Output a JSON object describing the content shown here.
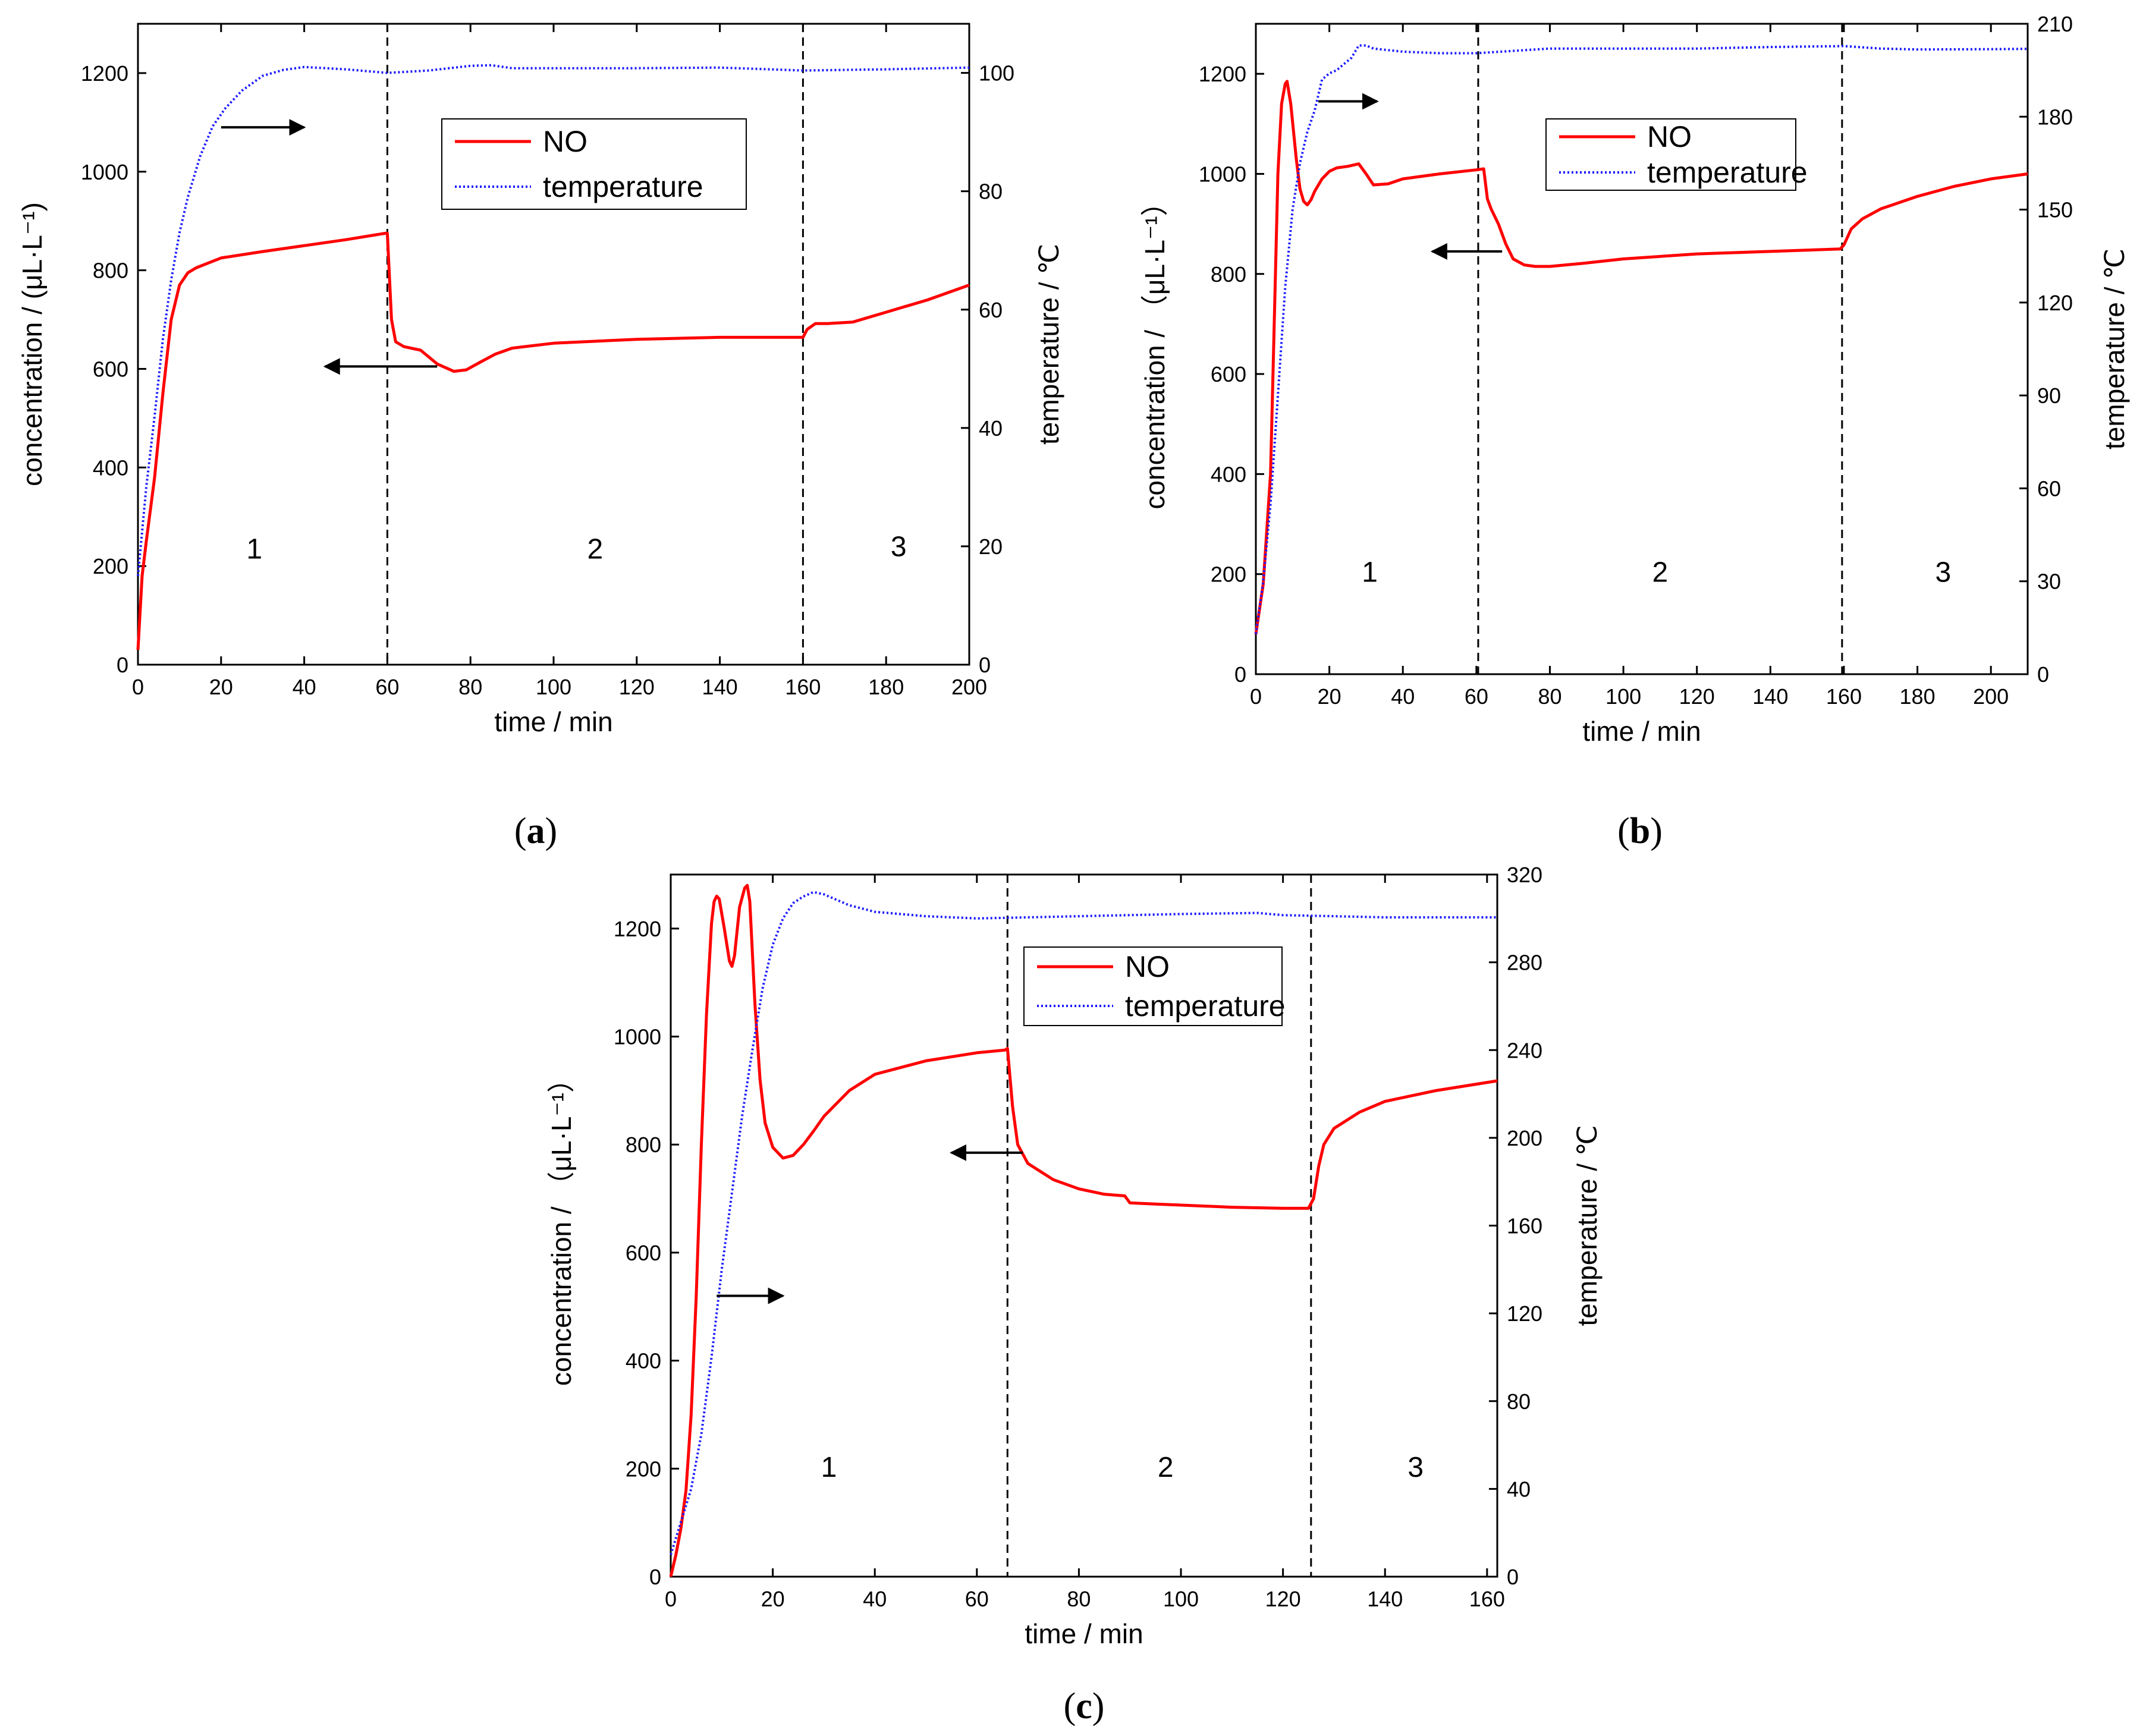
{
  "colors": {
    "no": "#ff0000",
    "temperature": "#1a1aff",
    "axis": "#000000"
  },
  "chart_data": [
    {
      "type": "line",
      "panel": "a",
      "caption": {
        "open": "(",
        "letter": "a",
        "close": ")"
      },
      "xlabel": "time / min",
      "ylabel": "concentration / (μL·L⁻¹)",
      "y2label": "temperature / ℃",
      "xlim": [
        0,
        200
      ],
      "ylim": [
        0,
        1300
      ],
      "y2lim": [
        0,
        108.3
      ],
      "xticks": [
        0,
        20,
        40,
        60,
        80,
        100,
        120,
        140,
        160,
        180,
        200
      ],
      "yticks": [
        0,
        200,
        400,
        600,
        800,
        1000,
        1200
      ],
      "y2ticks": [
        0,
        20,
        40,
        60,
        80,
        100
      ],
      "dividers": [
        60,
        160
      ],
      "regions": [
        {
          "label": "1",
          "x": 28,
          "y": 215
        },
        {
          "label": "2",
          "x": 110,
          "y": 215
        },
        {
          "label": "3",
          "x": 183,
          "y": 220
        }
      ],
      "legend": {
        "position": "top-center",
        "entries": [
          "NO",
          "temperature"
        ]
      },
      "arrows": [
        {
          "axis": "right",
          "x_from": 20,
          "x_to": 40,
          "y": 1090
        },
        {
          "axis": "left",
          "x_from": 72,
          "x_to": 45,
          "y": 605
        }
      ],
      "series": [
        {
          "name": "NO",
          "axis": "left",
          "x": [
            0,
            1,
            2,
            4,
            6,
            8,
            10,
            12,
            14,
            17,
            20,
            30,
            40,
            50,
            59.5,
            60,
            61,
            62,
            64,
            68,
            72,
            76,
            79,
            82,
            86,
            90,
            100,
            120,
            140,
            160,
            161,
            163,
            166,
            172,
            180,
            190,
            200
          ],
          "y": [
            30,
            180,
            250,
            380,
            550,
            700,
            770,
            795,
            805,
            815,
            825,
            838,
            850,
            862,
            875,
            875,
            700,
            655,
            645,
            638,
            610,
            595,
            598,
            612,
            630,
            642,
            652,
            660,
            664,
            664,
            680,
            692,
            692,
            695,
            715,
            740,
            770
          ]
        },
        {
          "name": "temperature",
          "axis": "right",
          "x": [
            0,
            2,
            4,
            6,
            8,
            10,
            12,
            15,
            18,
            21,
            25,
            30,
            35,
            40,
            50,
            60,
            70,
            80,
            85,
            90,
            100,
            120,
            140,
            160,
            180,
            200
          ],
          "y": [
            15,
            30,
            42,
            55,
            65,
            73,
            79,
            86,
            91,
            94,
            97,
            99.5,
            100.5,
            101,
            100.6,
            100,
            100.4,
            101.2,
            101.3,
            100.8,
            100.8,
            100.8,
            100.9,
            100.4,
            100.6,
            100.9
          ]
        }
      ]
    },
    {
      "type": "line",
      "panel": "b",
      "caption": {
        "open": "(",
        "letter": "b",
        "close": ")"
      },
      "xlabel": "time / min",
      "ylabel": "concentration / （μL·L⁻¹）",
      "y2label": "temperature / ℃",
      "xlim": [
        0,
        210
      ],
      "ylim": [
        0,
        1300
      ],
      "y2lim": [
        0,
        210
      ],
      "xticks": [
        0,
        20,
        40,
        60,
        80,
        100,
        120,
        140,
        160,
        180,
        200
      ],
      "yticks": [
        0,
        200,
        400,
        600,
        800,
        1000,
        1200
      ],
      "y2ticks": [
        0,
        30,
        60,
        90,
        120,
        150,
        180,
        210
      ],
      "dividers": [
        60.5,
        159.5
      ],
      "regions": [
        {
          "label": "1",
          "x": 31,
          "y": 185
        },
        {
          "label": "2",
          "x": 110,
          "y": 185
        },
        {
          "label": "3",
          "x": 187,
          "y": 185
        }
      ],
      "legend": {
        "position": "top-center",
        "entries": [
          "NO",
          "temperature"
        ]
      },
      "arrows": [
        {
          "axis": "right",
          "x_from": 17,
          "x_to": 33,
          "y": 1145
        },
        {
          "axis": "left",
          "x_from": 67,
          "x_to": 48,
          "y": 845
        }
      ],
      "series": [
        {
          "name": "NO",
          "axis": "left",
          "x": [
            0,
            2,
            4,
            5,
            6,
            7,
            8,
            8.5,
            9.5,
            11,
            12,
            13,
            14,
            15,
            16,
            18,
            20,
            22,
            25,
            28,
            30,
            32,
            36,
            40,
            50,
            60,
            62,
            63,
            64,
            66,
            68,
            70,
            73,
            76,
            80,
            90,
            100,
            120,
            140,
            159,
            160,
            162,
            165,
            170,
            180,
            190,
            200,
            210
          ],
          "y": [
            80,
            180,
            400,
            700,
            1000,
            1140,
            1180,
            1185,
            1140,
            1030,
            970,
            945,
            938,
            948,
            965,
            990,
            1005,
            1012,
            1015,
            1020,
            1000,
            978,
            980,
            990,
            1000,
            1008,
            1010,
            950,
            930,
            900,
            860,
            830,
            818,
            815,
            815,
            822,
            830,
            840,
            845,
            850,
            858,
            890,
            910,
            930,
            955,
            975,
            990,
            1000
          ]
        },
        {
          "name": "temperature",
          "axis": "right",
          "x": [
            0,
            2,
            4,
            6,
            8,
            10,
            12,
            14,
            16,
            18,
            20,
            22,
            24,
            26,
            28,
            30,
            32,
            40,
            50,
            60,
            80,
            100,
            120,
            140,
            160,
            170,
            180,
            200,
            210
          ],
          "y": [
            13,
            30,
            55,
            90,
            125,
            150,
            165,
            175,
            182,
            192,
            194,
            195,
            197,
            199,
            203,
            203,
            202,
            201,
            200.5,
            200.5,
            202,
            202,
            202,
            202.5,
            202.8,
            202,
            201.7,
            201.8,
            201.9
          ]
        }
      ]
    },
    {
      "type": "line",
      "panel": "c",
      "caption": {
        "open": "(",
        "letter": "c",
        "close": ")"
      },
      "xlabel": "time / min",
      "ylabel": "concentration / （μL·L⁻¹）",
      "y2label": "temperature / ℃",
      "xlim": [
        0,
        162
      ],
      "ylim": [
        0,
        1300
      ],
      "y2lim": [
        0,
        320
      ],
      "xticks": [
        0,
        20,
        40,
        60,
        80,
        100,
        120,
        140,
        160
      ],
      "yticks": [
        0,
        200,
        400,
        600,
        800,
        1000,
        1200
      ],
      "y2ticks": [
        0,
        40,
        80,
        120,
        160,
        200,
        240,
        280,
        320
      ],
      "dividers": [
        66,
        125.5
      ],
      "regions": [
        {
          "label": "1",
          "x": 31,
          "y": 185
        },
        {
          "label": "2",
          "x": 97,
          "y": 185
        },
        {
          "label": "3",
          "x": 146,
          "y": 185
        }
      ],
      "legend": {
        "position": "top-center",
        "entries": [
          "NO",
          "temperature"
        ]
      },
      "arrows": [
        {
          "axis": "right",
          "x_from": 9,
          "x_to": 22,
          "y": 520
        },
        {
          "axis": "left",
          "x_from": 69,
          "x_to": 55,
          "y": 785
        }
      ],
      "series": [
        {
          "name": "NO",
          "axis": "left",
          "x": [
            0,
            1,
            2,
            3,
            4,
            5,
            6,
            7,
            8,
            8.5,
            9,
            9.5,
            10.5,
            11.5,
            12,
            12.5,
            13.5,
            14.5,
            15,
            15.5,
            16.5,
            17.5,
            18.5,
            20,
            22,
            24,
            26,
            28,
            30,
            35,
            40,
            50,
            60,
            65.5,
            66,
            67,
            68,
            70,
            75,
            80,
            85,
            89,
            90,
            95,
            100,
            110,
            120,
            125,
            126,
            127,
            128,
            130,
            135,
            140,
            150,
            162
          ],
          "y": [
            0,
            40,
            90,
            160,
            300,
            520,
            800,
            1040,
            1210,
            1250,
            1260,
            1255,
            1200,
            1140,
            1130,
            1150,
            1240,
            1275,
            1280,
            1250,
            1060,
            920,
            840,
            795,
            775,
            780,
            800,
            825,
            852,
            900,
            930,
            955,
            970,
            975,
            978,
            870,
            800,
            765,
            735,
            718,
            708,
            705,
            692,
            690,
            688,
            684,
            682,
            682,
            700,
            760,
            800,
            830,
            860,
            880,
            900,
            918
          ]
        },
        {
          "name": "temperature",
          "axis": "right",
          "x": [
            0,
            2,
            4,
            6,
            8,
            10,
            12,
            14,
            16,
            18,
            20,
            22,
            24,
            26,
            28,
            30,
            35,
            40,
            50,
            60,
            70,
            80,
            100,
            115,
            120,
            130,
            140,
            150,
            162
          ],
          "y": [
            10,
            25,
            40,
            65,
            100,
            140,
            175,
            210,
            240,
            268,
            288,
            300,
            307,
            310,
            312,
            311,
            306,
            303,
            301,
            300,
            300.5,
            301,
            302,
            302.5,
            301.5,
            301,
            300.5,
            300.5,
            300.5
          ]
        }
      ]
    }
  ]
}
